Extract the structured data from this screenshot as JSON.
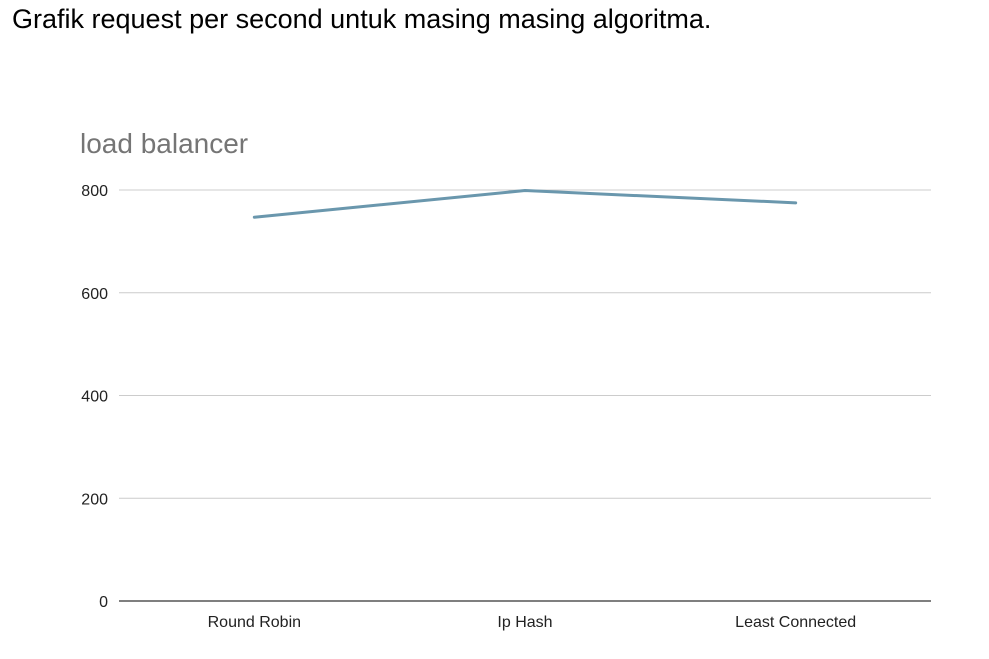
{
  "document": {
    "heading": "Grafik request per second untuk masing masing algoritma."
  },
  "chart_data": {
    "type": "line",
    "title": "load balancer",
    "xlabel": "",
    "ylabel": "",
    "categories": [
      "Round Robin",
      "Ip Hash",
      "Least Connected"
    ],
    "series": [
      {
        "values": [
          747,
          799,
          775
        ]
      }
    ],
    "ylim": [
      0,
      800
    ],
    "yticks": [
      0,
      200,
      400,
      600,
      800
    ],
    "grid": true,
    "legend": "none",
    "colors": {
      "line": "#6a97ad",
      "grid": "#cccccc",
      "axis": "#333333"
    }
  }
}
